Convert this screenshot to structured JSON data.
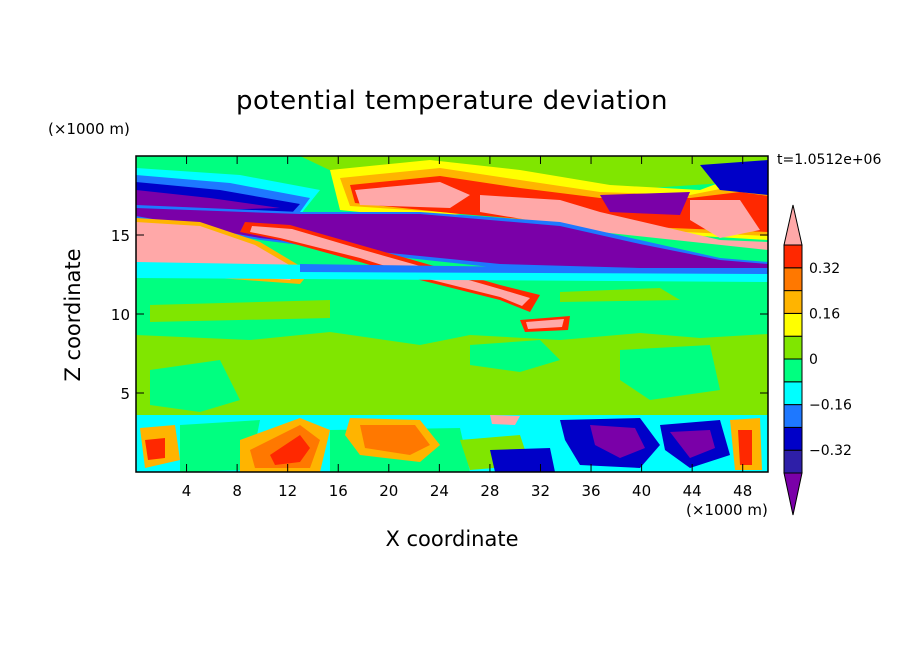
{
  "chart_data": {
    "type": "heatmap",
    "title": "potential temperature deviation",
    "xlabel": "X coordinate",
    "ylabel": "Z coordinate",
    "x_unit": "(×1000 m)",
    "y_unit": "(×1000 m)",
    "annotation": "t=1.0512e+06",
    "xlim": [
      0,
      50
    ],
    "ylim": [
      0,
      20
    ],
    "x_ticks": [
      4,
      8,
      12,
      16,
      20,
      24,
      28,
      32,
      36,
      40,
      44,
      48
    ],
    "y_ticks": [
      5,
      10,
      15
    ],
    "colorbar": {
      "tick_labels": [
        "0.32",
        "0.16",
        "0",
        "−0.16",
        "−0.32"
      ],
      "tick_values": [
        0.32,
        0.16,
        0,
        -0.16,
        -0.32
      ],
      "levels": [
        -0.4,
        -0.32,
        -0.24,
        -0.16,
        -0.08,
        0,
        0.08,
        0.16,
        0.24,
        0.32,
        0.4
      ],
      "colors": [
        "#7a00a8",
        "#2e1fa8",
        "#0000c8",
        "#1e78ff",
        "#00ffff",
        "#00ff80",
        "#80e600",
        "#ffff00",
        "#ffb400",
        "#ff7800",
        "#ff2800",
        "#ffa8a8"
      ]
    }
  }
}
